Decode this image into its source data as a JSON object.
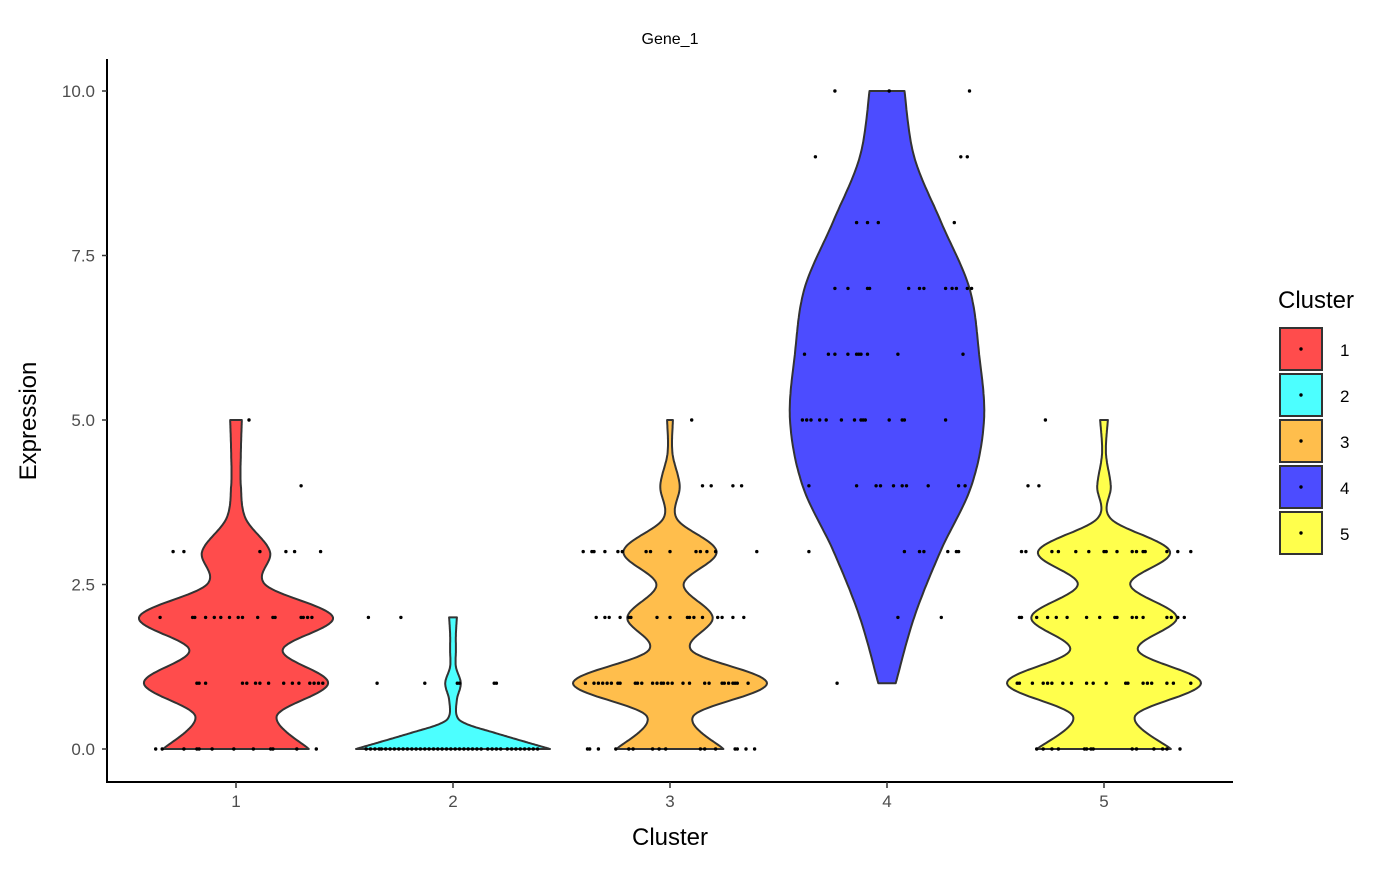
{
  "chart_data": {
    "type": "violin",
    "title": "Gene_1",
    "xlabel": "Cluster",
    "ylabel": "Expression",
    "ylim": [
      -0.5,
      10.5
    ],
    "yticks": [
      "0.0",
      "2.5",
      "5.0",
      "7.5",
      "10.0"
    ],
    "ytick_values": [
      0,
      2.5,
      5,
      7.5,
      10
    ],
    "categories": [
      "1",
      "2",
      "3",
      "4",
      "5"
    ],
    "grid": false,
    "legend": {
      "title": "Cluster",
      "position": "right",
      "entries": [
        "1",
        "2",
        "3",
        "4",
        "5"
      ]
    },
    "series": [
      {
        "name": "1",
        "color": "#FF4C4C",
        "density": [
          [
            0,
            0.75
          ],
          [
            0.5,
            0.42
          ],
          [
            1,
            0.95
          ],
          [
            1.5,
            0.48
          ],
          [
            2,
            1.0
          ],
          [
            2.5,
            0.3
          ],
          [
            3,
            0.35
          ],
          [
            3.5,
            0.1
          ],
          [
            4,
            0.05
          ],
          [
            4.5,
            0.05
          ],
          [
            5,
            0.06
          ]
        ],
        "points": [
          [
            0,
            [
              -0.37,
              -0.34,
              -0.24,
              -0.18,
              -0.17,
              -0.11,
              -0.01,
              0.08,
              0.16,
              0.17,
              0.28,
              0.37
            ]
          ],
          [
            1,
            [
              -0.18,
              -0.17,
              -0.14,
              0.03,
              0.05,
              0.09,
              0.11,
              0.15,
              0.22,
              0.26,
              0.29,
              0.34,
              0.36,
              0.38,
              0.4
            ]
          ],
          [
            2,
            [
              -0.35,
              -0.2,
              -0.19,
              -0.14,
              -0.1,
              -0.07,
              -0.03,
              0.01,
              0.03,
              0.1,
              0.17,
              0.18,
              0.3,
              0.31,
              0.33,
              0.35
            ]
          ],
          [
            3,
            [
              -0.29,
              -0.24,
              0.11,
              0.23,
              0.27,
              0.39
            ]
          ],
          [
            4,
            [
              0.3
            ]
          ],
          [
            5,
            [
              0.06
            ]
          ]
        ]
      },
      {
        "name": "2",
        "color": "#4CFFFF",
        "density": [
          [
            0,
            1.0
          ],
          [
            0.12,
            0.72
          ],
          [
            0.25,
            0.42
          ],
          [
            0.38,
            0.14
          ],
          [
            0.5,
            0.04
          ],
          [
            0.75,
            0.04
          ],
          [
            1,
            0.08
          ],
          [
            1.25,
            0.03
          ],
          [
            1.5,
            0.03
          ],
          [
            1.75,
            0.03
          ],
          [
            2,
            0.04
          ]
        ],
        "points": [
          [
            0,
            [
              -0.4,
              -0.38,
              -0.36,
              -0.34,
              -0.33,
              -0.31,
              -0.29,
              -0.27,
              -0.25,
              -0.23,
              -0.21,
              -0.19,
              -0.17,
              -0.15,
              -0.13,
              -0.11,
              -0.09,
              -0.07,
              -0.05,
              -0.03,
              -0.01,
              0.01,
              0.03,
              0.05,
              0.07,
              0.09,
              0.11,
              0.13,
              0.16,
              0.18,
              0.2,
              0.22,
              0.25,
              0.27,
              0.29,
              0.31,
              0.33,
              0.35,
              0.37,
              0.39
            ]
          ],
          [
            1,
            [
              -0.35,
              -0.13,
              0.02,
              0.03,
              0.19,
              0.2
            ]
          ],
          [
            2,
            [
              -0.39,
              -0.24
            ]
          ]
        ]
      },
      {
        "name": "3",
        "color": "#FFBE4C",
        "density": [
          [
            0,
            0.55
          ],
          [
            0.5,
            0.24
          ],
          [
            1,
            1.0
          ],
          [
            1.5,
            0.22
          ],
          [
            2,
            0.44
          ],
          [
            2.5,
            0.14
          ],
          [
            3,
            0.48
          ],
          [
            3.5,
            0.07
          ],
          [
            4,
            0.1
          ],
          [
            4.5,
            0.025
          ],
          [
            5,
            0.03
          ]
        ],
        "points": [
          [
            0,
            [
              -0.38,
              -0.37,
              -0.33,
              -0.25,
              -0.19,
              -0.17,
              -0.08,
              -0.05,
              -0.02,
              0.14,
              0.16,
              0.21,
              0.3,
              0.31,
              0.35,
              0.39
            ]
          ],
          [
            1,
            [
              -0.39,
              -0.35,
              -0.33,
              -0.31,
              -0.29,
              -0.27,
              -0.24,
              -0.23,
              -0.16,
              -0.15,
              -0.13,
              -0.08,
              -0.06,
              -0.04,
              -0.03,
              -0.01,
              0.01,
              0.06,
              0.09,
              0.16,
              0.18,
              0.24,
              0.25,
              0.27,
              0.29,
              0.3,
              0.31,
              0.36
            ]
          ],
          [
            2,
            [
              -0.34,
              -0.3,
              -0.28,
              -0.23,
              -0.19,
              -0.18,
              -0.06,
              0,
              0.08,
              0.09,
              0.11,
              0.15,
              0.22,
              0.24,
              0.29,
              0.34
            ]
          ],
          [
            3,
            [
              -0.4,
              -0.36,
              -0.35,
              -0.3,
              -0.24,
              -0.22,
              -0.11,
              -0.09,
              0,
              0.12,
              0.14,
              0.17,
              0.21,
              0.4
            ]
          ],
          [
            4,
            [
              0.15,
              0.19,
              0.29,
              0.33
            ]
          ],
          [
            5,
            [
              0.1
            ]
          ]
        ]
      },
      {
        "name": "4",
        "color": "#4C4CFF",
        "density": [
          [
            1,
            0.09
          ],
          [
            2,
            0.28
          ],
          [
            3,
            0.55
          ],
          [
            4,
            0.87
          ],
          [
            5,
            1.0
          ],
          [
            6,
            0.95
          ],
          [
            7,
            0.85
          ],
          [
            8,
            0.56
          ],
          [
            9,
            0.28
          ],
          [
            10,
            0.18
          ]
        ],
        "points": [
          [
            1,
            [
              -0.23
            ]
          ],
          [
            2,
            [
              0.05,
              0.25
            ]
          ],
          [
            3,
            [
              -0.36,
              0.08,
              0.15,
              0.17,
              0.28,
              0.32,
              0.33
            ]
          ],
          [
            4,
            [
              -0.36,
              -0.14,
              -0.05,
              -0.03,
              0.03,
              0.07,
              0.09,
              0.19,
              0.33,
              0.36
            ]
          ],
          [
            5,
            [
              -0.39,
              -0.37,
              -0.35,
              -0.31,
              -0.28,
              -0.21,
              -0.15,
              -0.12,
              -0.11,
              -0.1,
              0.01,
              0.07,
              0.08,
              0.27
            ]
          ],
          [
            6,
            [
              -0.38,
              -0.27,
              -0.24,
              -0.18,
              -0.14,
              -0.13,
              -0.12,
              -0.09,
              0.05,
              0.35
            ]
          ],
          [
            7,
            [
              -0.24,
              -0.18,
              -0.09,
              -0.08,
              0.1,
              0.15,
              0.17,
              0.27,
              0.3,
              0.32,
              0.37,
              0.39
            ]
          ],
          [
            8,
            [
              -0.14,
              -0.09,
              -0.04,
              0.31
            ]
          ],
          [
            9,
            [
              -0.33,
              0.34,
              0.37
            ]
          ],
          [
            10,
            [
              -0.24,
              0.01,
              0.38
            ]
          ]
        ]
      },
      {
        "name": "5",
        "color": "#FFFF4C",
        "density": [
          [
            0,
            0.69
          ],
          [
            0.5,
            0.32
          ],
          [
            1,
            1.0
          ],
          [
            1.5,
            0.35
          ],
          [
            2,
            0.75
          ],
          [
            2.5,
            0.27
          ],
          [
            3,
            0.68
          ],
          [
            3.5,
            0.07
          ],
          [
            4,
            0.07
          ],
          [
            4.5,
            0.02
          ],
          [
            5,
            0.04
          ]
        ],
        "points": [
          [
            0,
            [
              -0.31,
              -0.28,
              -0.24,
              -0.21,
              -0.09,
              -0.08,
              -0.06,
              -0.05,
              0.13,
              0.15,
              0.23,
              0.27,
              0.29,
              0.35
            ]
          ],
          [
            1,
            [
              -0.4,
              -0.39,
              -0.33,
              -0.28,
              -0.26,
              -0.24,
              -0.19,
              -0.15,
              -0.08,
              -0.05,
              0.01,
              0.1,
              0.11,
              0.18,
              0.2,
              0.22,
              0.29,
              0.32,
              0.4
            ]
          ],
          [
            2,
            [
              -0.39,
              -0.38,
              -0.31,
              -0.26,
              -0.22,
              -0.17,
              -0.08,
              -0.02,
              0.05,
              0.06,
              0.13,
              0.15,
              0.18,
              0.29,
              0.31,
              0.34,
              0.37
            ]
          ],
          [
            3,
            [
              -0.38,
              -0.36,
              -0.24,
              -0.21,
              -0.13,
              -0.07,
              0,
              0.01,
              0.06,
              0.13,
              0.15,
              0.18,
              0.19,
              0.29,
              0.34,
              0.4
            ]
          ],
          [
            4,
            [
              -0.35,
              -0.3
            ]
          ],
          [
            5,
            [
              -0.27
            ]
          ]
        ]
      }
    ]
  }
}
